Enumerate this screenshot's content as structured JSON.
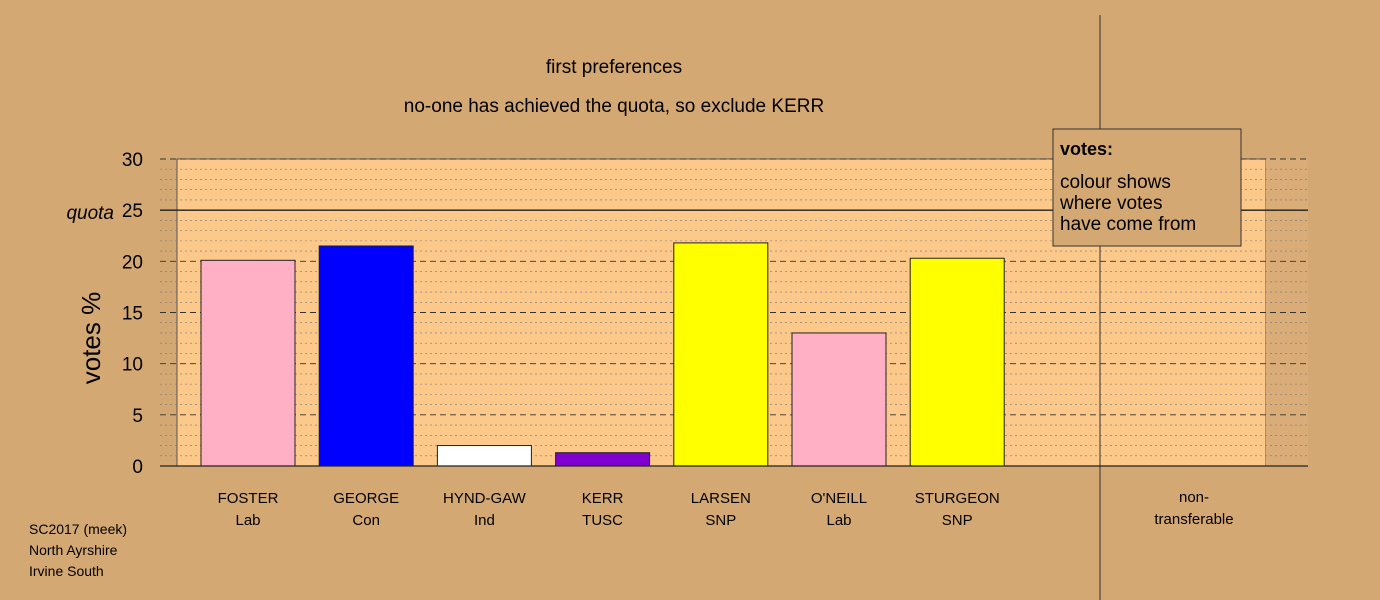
{
  "title": "first preferences",
  "subtitle": "no-one has achieved the quota, so exclude KERR",
  "legend": {
    "heading": "votes:",
    "lines": [
      "colour shows",
      "where votes",
      "have come from"
    ]
  },
  "footer": [
    "SC2017 (meek)",
    "North Ayrshire",
    "Irvine South"
  ],
  "colors": {
    "background": "#d4a873",
    "plot_area": "#fcc98a",
    "non_transferable_area": "#d9ac78",
    "Lab": "#ffb0c4",
    "Con": "#0000ff",
    "Ind": "#ffffff",
    "TUSC": "#8000d0",
    "SNP": "#ffff00"
  },
  "chart_data": {
    "type": "bar",
    "title": "first preferences",
    "subtitle": "no-one has achieved the quota, so exclude KERR",
    "ylabel": "votes %",
    "ylim": [
      0,
      30
    ],
    "yticks": [
      0,
      5,
      10,
      15,
      20,
      25,
      30
    ],
    "quota": 25,
    "quota_label": "quota",
    "grid": true,
    "legend_position": "top-right",
    "categories": [
      {
        "name": "FOSTER",
        "party": "Lab"
      },
      {
        "name": "GEORGE",
        "party": "Con"
      },
      {
        "name": "HYND-GAW",
        "party": "Ind"
      },
      {
        "name": "KERR",
        "party": "TUSC"
      },
      {
        "name": "LARSEN",
        "party": "SNP"
      },
      {
        "name": "O'NEILL",
        "party": "Lab"
      },
      {
        "name": "STURGEON",
        "party": "SNP"
      }
    ],
    "values": [
      20.1,
      21.5,
      2.0,
      1.3,
      21.8,
      13.0,
      20.3
    ],
    "non_transferable": {
      "label_lines": [
        "non-",
        "transferable"
      ],
      "value": 0
    }
  }
}
